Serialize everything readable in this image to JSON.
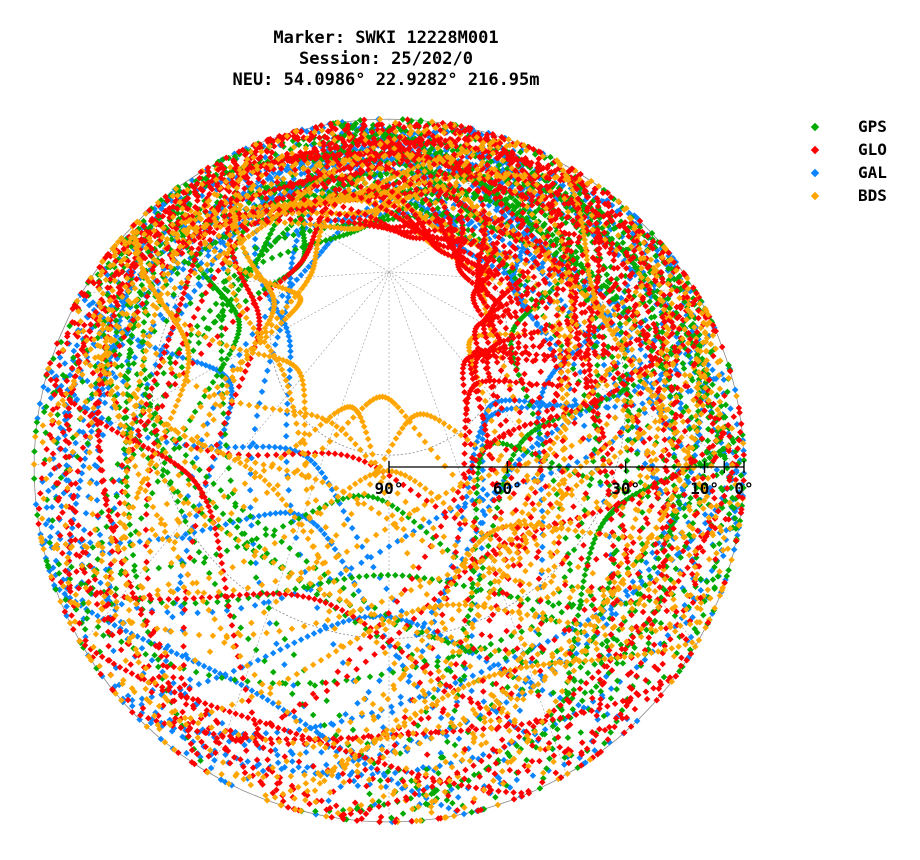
{
  "title_lines": [
    "Marker: SWKI 12228M001",
    "Session: 25/202/0",
    "NEU: 54.0986° 22.9282° 216.95m"
  ],
  "legend": [
    {
      "label": "GPS",
      "color": "#00aa00"
    },
    {
      "label": "GLO",
      "color": "#ff0000"
    },
    {
      "label": "GAL",
      "color": "#0a84ff"
    },
    {
      "label": "BDS",
      "color": "#ffa500"
    }
  ],
  "chart_data": {
    "type": "scatter",
    "projection": "polar-skyplot",
    "title": "Marker: SWKI 12228M001 / Session: 25/202/0 / NEU: 54.0986° 22.9282° 216.95m",
    "radial_axis": {
      "quantity": "elevation",
      "range": [
        0,
        90
      ],
      "tick_labels": [
        "90°",
        "60°",
        "30°",
        "10°",
        "0°"
      ],
      "ticks": [
        90,
        60,
        30,
        10,
        0
      ],
      "extra_ticks": [
        5
      ]
    },
    "angular_axis": {
      "quantity": "azimuth",
      "range": [
        0,
        360
      ],
      "orientation": "north-up"
    },
    "grid": true,
    "legend_position": "top-right",
    "series": [
      {
        "name": "GPS",
        "color": "#00aa00",
        "description": "satellite tracks across all azimuths, elevations up to ~55°"
      },
      {
        "name": "GLO",
        "color": "#ff0000",
        "description": "tracks incl. dense ring near elevation ~65° toward north"
      },
      {
        "name": "GAL",
        "color": "#0a84ff",
        "description": "tracks at all azimuths, max elevation ~60° to north"
      },
      {
        "name": "BDS",
        "color": "#ffa500",
        "description": "arcs crossing the southern sky and low northern sky"
      }
    ]
  }
}
